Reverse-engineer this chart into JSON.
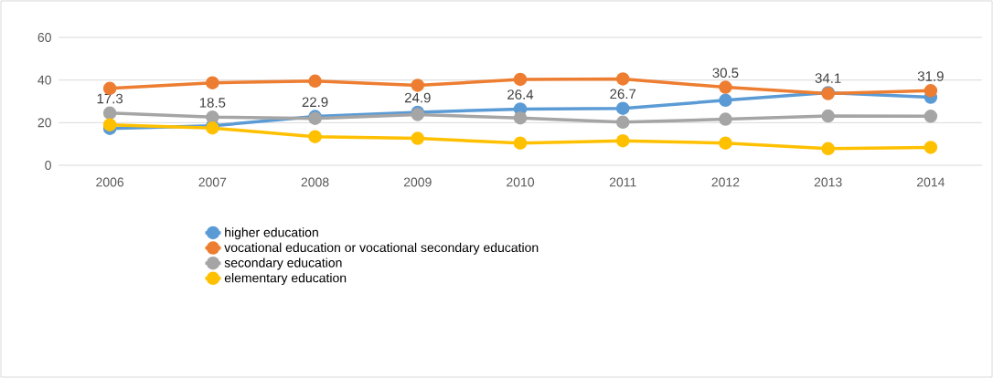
{
  "chart_data": {
    "type": "line",
    "categories": [
      "2006",
      "2007",
      "2008",
      "2009",
      "2010",
      "2011",
      "2012",
      "2013",
      "2014"
    ],
    "series": [
      {
        "name": "higher education",
        "color": "#5b9bd5",
        "values": [
          17.3,
          18.5,
          22.9,
          24.9,
          26.4,
          26.7,
          30.5,
          34.1,
          31.9
        ],
        "value_labels": [
          "17.3",
          "18.5",
          "22.9",
          "24.9",
          "26.4",
          "26.7",
          "30.5",
          "34.1",
          "31.9"
        ]
      },
      {
        "name": "vocational education or vocational secondary education",
        "color": "#ed7d31",
        "values": [
          36.1,
          38.7,
          39.5,
          37.5,
          40.3,
          40.5,
          36.6,
          33.6,
          35.0
        ]
      },
      {
        "name": "secondary education",
        "color": "#a5a5a5",
        "values": [
          24.5,
          22.6,
          22.0,
          23.8,
          22.2,
          20.2,
          21.6,
          23.1,
          23.0
        ]
      },
      {
        "name": "elementary education",
        "color": "#ffc000",
        "values": [
          19.0,
          17.5,
          13.4,
          12.6,
          10.4,
          11.5,
          10.4,
          7.8,
          8.4
        ]
      }
    ],
    "ylim": [
      0,
      60
    ],
    "yticks": [
      0,
      20,
      40,
      60
    ],
    "grid": "y",
    "legend": "bottom",
    "marker": "circle",
    "line_style": "solid"
  }
}
